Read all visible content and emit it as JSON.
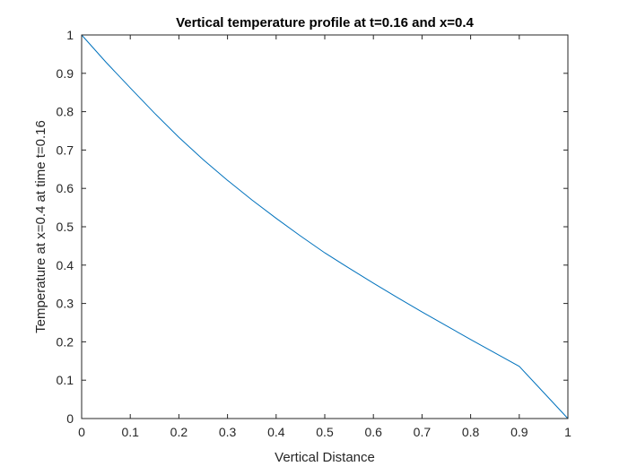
{
  "chart_data": {
    "type": "line",
    "title": "Vertical temperature profile at t=0.16 and x=0.4",
    "xlabel": "Vertical Distance",
    "ylabel": "Temperature at x=0.4 at time t=0.16",
    "xlim": [
      0,
      1
    ],
    "ylim": [
      0,
      1
    ],
    "xticks": [
      "0",
      "0.1",
      "0.2",
      "0.3",
      "0.4",
      "0.5",
      "0.6",
      "0.7",
      "0.8",
      "0.9",
      "1"
    ],
    "yticks": [
      "0",
      "0.1",
      "0.2",
      "0.3",
      "0.4",
      "0.5",
      "0.6",
      "0.7",
      "0.8",
      "0.9",
      "1"
    ],
    "grid": false,
    "box": true,
    "series": [
      {
        "color": "#0072BD",
        "x": [
          0,
          0.05,
          0.1,
          0.15,
          0.2,
          0.25,
          0.3,
          0.35,
          0.4,
          0.45,
          0.5,
          0.55,
          0.6,
          0.65,
          0.7,
          0.75,
          0.8,
          0.85,
          0.9,
          0.95,
          1
        ],
        "y": [
          1,
          0.929,
          0.862,
          0.796,
          0.733,
          0.675,
          0.621,
          0.57,
          0.522,
          0.476,
          0.432,
          0.392,
          0.353,
          0.315,
          0.278,
          0.242,
          0.206,
          0.171,
          0.136,
          0.068,
          0
        ]
      }
    ]
  }
}
